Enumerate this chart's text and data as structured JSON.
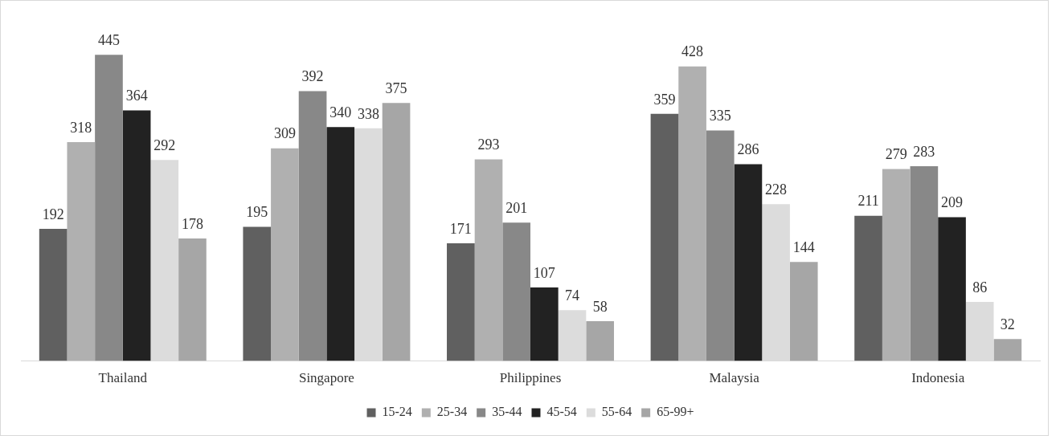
{
  "chart_data": {
    "type": "bar",
    "categories": [
      "Thailand",
      "Singapore",
      "Philippines",
      "Malaysia",
      "Indonesia"
    ],
    "series": [
      {
        "name": "15-24",
        "color": "#606060",
        "values": [
          192,
          195,
          171,
          359,
          211
        ]
      },
      {
        "name": "25-34",
        "color": "#b0b0b0",
        "values": [
          318,
          309,
          293,
          428,
          279
        ]
      },
      {
        "name": "35-44",
        "color": "#888888",
        "values": [
          445,
          392,
          201,
          335,
          283
        ]
      },
      {
        "name": "45-54",
        "color": "#222222",
        "values": [
          364,
          340,
          107,
          286,
          209
        ]
      },
      {
        "name": "55-64",
        "color": "#dcdcdc",
        "values": [
          292,
          338,
          74,
          228,
          86
        ]
      },
      {
        "name": "65-99+",
        "color": "#a6a6a6",
        "values": [
          178,
          375,
          58,
          144,
          32
        ]
      }
    ],
    "tick_labels": "x",
    "grid": false,
    "legend": "bottom",
    "data_labels": true
  }
}
